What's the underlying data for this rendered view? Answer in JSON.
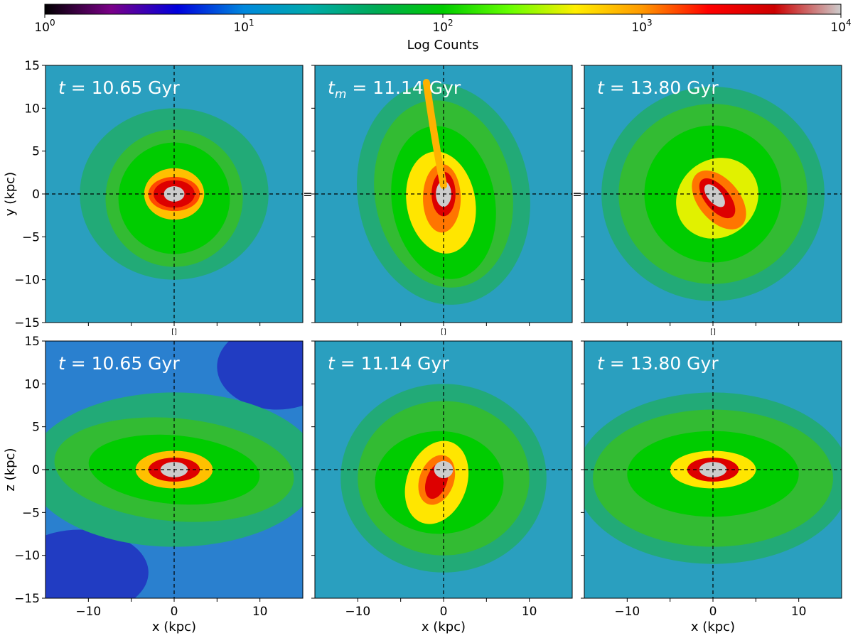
{
  "colorbar": {
    "label": "Log Counts",
    "scale": "log",
    "range": [
      1,
      10000
    ],
    "colormap": "nipy_spectral",
    "stops": [
      "#000000",
      "#7a0088",
      "#0000dd",
      "#0088dd",
      "#00aaaa",
      "#00aa55",
      "#00cc00",
      "#66ff00",
      "#ffee00",
      "#ff9900",
      "#ff0000",
      "#cc0000",
      "#cccccc"
    ],
    "ticks": [
      {
        "base": "10",
        "exp": "0"
      },
      {
        "base": "10",
        "exp": "1"
      },
      {
        "base": "10",
        "exp": "2"
      },
      {
        "base": "10",
        "exp": "3"
      },
      {
        "base": "10",
        "exp": "4"
      }
    ]
  },
  "chart_data": [
    {
      "type": "heatmap",
      "panel": "top-left",
      "title_var": "t",
      "title_sub": "",
      "title_rest": " = 10.65 Gyr",
      "xlim": [
        -15,
        15
      ],
      "ylim": [
        -15,
        15
      ],
      "xlabel": "",
      "ylabel": "y (kpc)",
      "grid": false,
      "crosshair": [
        0,
        0
      ]
    },
    {
      "type": "heatmap",
      "panel": "top-middle",
      "title_var": "t",
      "title_sub": "m",
      "title_rest": " = 11.14 Gyr",
      "xlim": [
        -15,
        15
      ],
      "ylim": [
        -15,
        15
      ],
      "xlabel": "",
      "ylabel": "",
      "grid": false,
      "crosshair": [
        0,
        0
      ]
    },
    {
      "type": "heatmap",
      "panel": "top-right",
      "title_var": "t",
      "title_sub": "",
      "title_rest": " = 13.80 Gyr",
      "xlim": [
        -15,
        15
      ],
      "ylim": [
        -15,
        15
      ],
      "xlabel": "",
      "ylabel": "",
      "grid": false,
      "crosshair": [
        0,
        0
      ]
    },
    {
      "type": "heatmap",
      "panel": "bottom-left",
      "title_var": "t",
      "title_sub": "",
      "title_rest": " = 10.65 Gyr",
      "xlim": [
        -15,
        15
      ],
      "ylim": [
        -15,
        15
      ],
      "xlabel": "x (kpc)",
      "ylabel": "z (kpc)",
      "grid": false,
      "crosshair": [
        0,
        0
      ]
    },
    {
      "type": "heatmap",
      "panel": "bottom-middle",
      "title_var": "t",
      "title_sub": "",
      "title_rest": " = 11.14 Gyr",
      "xlim": [
        -15,
        15
      ],
      "ylim": [
        -15,
        15
      ],
      "xlabel": "x (kpc)",
      "ylabel": "",
      "grid": false,
      "crosshair": [
        0,
        0
      ]
    },
    {
      "type": "heatmap",
      "panel": "bottom-right",
      "title_var": "t",
      "title_sub": "",
      "title_rest": " = 13.80 Gyr",
      "xlim": [
        -15,
        15
      ],
      "ylim": [
        -15,
        15
      ],
      "xlabel": "x (kpc)",
      "ylabel": "",
      "grid": false,
      "crosshair": [
        0,
        0
      ]
    }
  ],
  "x_ticks": [
    "−10",
    "0",
    "10"
  ],
  "y_ticks": [
    "15",
    "10",
    "5",
    "0",
    "−5",
    "−10",
    "−15"
  ],
  "stray_glyphs": {
    "bracket": "[]",
    "equals": "="
  }
}
